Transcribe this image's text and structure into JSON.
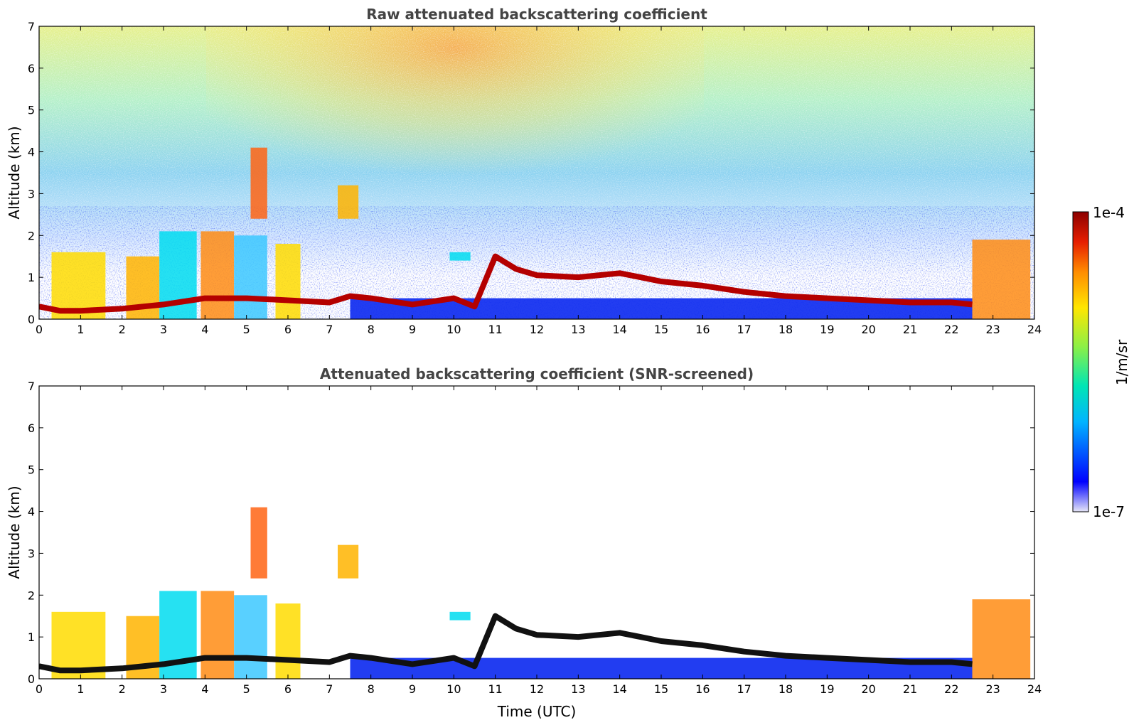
{
  "colors": {
    "colormap": [
      "#e6e6f7",
      "#0000ff",
      "#00b4ff",
      "#00e6b4",
      "#8cf046",
      "#ffe600",
      "#ff8c00",
      "#e61e00",
      "#8c0000"
    ]
  },
  "colorbar": {
    "max_label": "1e-4",
    "min_label": "1e-7",
    "units": "1/m/sr",
    "vmin": 1e-07,
    "vmax": 0.0001,
    "scale": "log"
  },
  "xaxis": {
    "label": "Time (UTC)"
  },
  "yaxis": {
    "label": "Altitude (km)"
  },
  "chart_data": [
    {
      "type": "heatmap",
      "title": "Raw attenuated backscattering coefficient",
      "xlabel": "",
      "ylabel": "Altitude (km)",
      "xlim": [
        0,
        24
      ],
      "ylim": [
        0,
        7
      ],
      "xticks": [
        0,
        1,
        2,
        3,
        4,
        5,
        6,
        7,
        8,
        9,
        10,
        11,
        12,
        13,
        14,
        15,
        16,
        17,
        18,
        19,
        20,
        21,
        22,
        23,
        24
      ],
      "yticks": [
        0,
        1,
        2,
        3,
        4,
        5,
        6,
        7
      ],
      "boundary_layer_top_km": [
        [
          0,
          0.3
        ],
        [
          0.5,
          0.2
        ],
        [
          1,
          0.2
        ],
        [
          2,
          0.25
        ],
        [
          3,
          0.35
        ],
        [
          4,
          0.5
        ],
        [
          5,
          0.5
        ],
        [
          6,
          0.45
        ],
        [
          7,
          0.4
        ],
        [
          7.5,
          0.55
        ],
        [
          8,
          0.5
        ],
        [
          9,
          0.35
        ],
        [
          10,
          0.5
        ],
        [
          10.5,
          0.3
        ],
        [
          11,
          1.5
        ],
        [
          11.5,
          1.2
        ],
        [
          12,
          1.05
        ],
        [
          13,
          1.0
        ],
        [
          14,
          1.1
        ],
        [
          14.5,
          1.0
        ],
        [
          15,
          0.9
        ],
        [
          16,
          0.8
        ],
        [
          17,
          0.65
        ],
        [
          18,
          0.55
        ],
        [
          19,
          0.5
        ],
        [
          20,
          0.45
        ],
        [
          21,
          0.4
        ],
        [
          22,
          0.4
        ],
        [
          22.5,
          0.35
        ]
      ],
      "cloud_patches": [
        {
          "x": [
            0.3,
            1.6
          ],
          "alt_km": [
            0,
            1.6
          ]
        },
        {
          "x": [
            2.1,
            2.9
          ],
          "alt_km": [
            0,
            1.5
          ]
        },
        {
          "x": [
            2.9,
            3.8
          ],
          "alt_km": [
            0,
            2.1
          ]
        },
        {
          "x": [
            3.9,
            4.7
          ],
          "alt_km": [
            0,
            2.1
          ]
        },
        {
          "x": [
            4.7,
            5.5
          ],
          "alt_km": [
            0,
            2.0
          ]
        },
        {
          "x": [
            5.1,
            5.5
          ],
          "alt_km": [
            2.4,
            4.1
          ]
        },
        {
          "x": [
            5.7,
            6.3
          ],
          "alt_km": [
            0,
            1.8
          ]
        },
        {
          "x": [
            7.2,
            7.7
          ],
          "alt_km": [
            2.4,
            3.2
          ]
        },
        {
          "x": [
            9.9,
            10.4
          ],
          "alt_km": [
            1.4,
            1.6
          ]
        },
        {
          "x": [
            22.5,
            23.9
          ],
          "alt_km": [
            0,
            1.9
          ]
        }
      ]
    },
    {
      "type": "heatmap",
      "title": "Attenuated backscattering coefficient (SNR-screened)",
      "xlabel": "Time (UTC)",
      "ylabel": "Altitude (km)",
      "xlim": [
        0,
        24
      ],
      "ylim": [
        0,
        7
      ],
      "xticks": [
        0,
        1,
        2,
        3,
        4,
        5,
        6,
        7,
        8,
        9,
        10,
        11,
        12,
        13,
        14,
        15,
        16,
        17,
        18,
        19,
        20,
        21,
        22,
        23,
        24
      ],
      "yticks": [
        0,
        1,
        2,
        3,
        4,
        5,
        6,
        7
      ],
      "screened": true
    }
  ]
}
